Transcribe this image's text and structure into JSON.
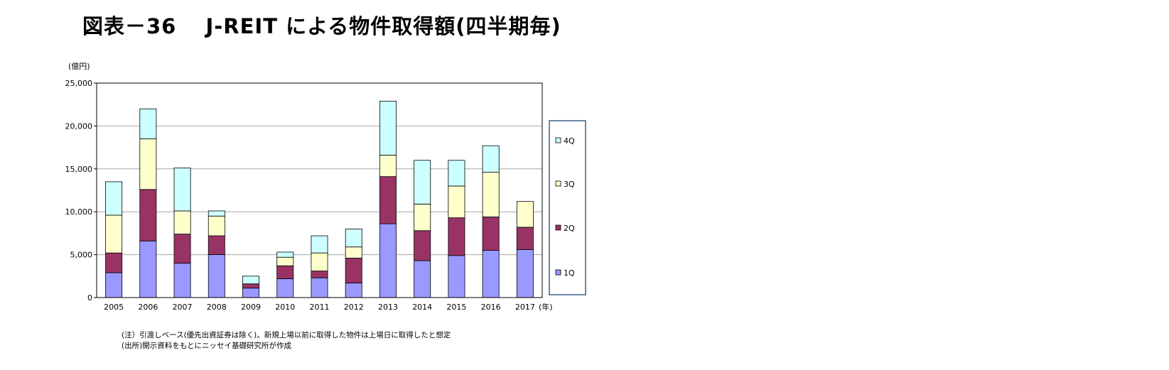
{
  "title": "図表－36　 J-REIT による物件取得額(四半期毎)",
  "chart_data": {
    "type": "bar",
    "stacked": true,
    "title": "",
    "ylabel": "(億円)",
    "xlabel": "(年)",
    "ylim": [
      0,
      25000
    ],
    "yticks": [
      0,
      5000,
      10000,
      15000,
      20000,
      25000
    ],
    "ytick_labels": [
      "0",
      "5,000",
      "10,000",
      "15,000",
      "20,000",
      "25,000"
    ],
    "grid": true,
    "legend_position": "right",
    "categories": [
      "2005",
      "2006",
      "2007",
      "2008",
      "2009",
      "2010",
      "2011",
      "2012",
      "2013",
      "2014",
      "2015",
      "2016",
      "2017"
    ],
    "series": [
      {
        "name": "1Q",
        "color": "#9999ff",
        "values": [
          2900,
          6600,
          4000,
          5000,
          1100,
          2200,
          2300,
          1700,
          8600,
          4300,
          4900,
          5500,
          5600
        ]
      },
      {
        "name": "2Q",
        "color": "#993366",
        "values": [
          2300,
          6000,
          3400,
          2200,
          500,
          1500,
          800,
          2900,
          5500,
          3500,
          4400,
          3900,
          2600
        ]
      },
      {
        "name": "3Q",
        "color": "#ffffcc",
        "values": [
          4400,
          5900,
          2700,
          2300,
          0,
          1000,
          2100,
          1300,
          2500,
          3100,
          3700,
          5200,
          3000
        ]
      },
      {
        "name": "4Q",
        "color": "#ccffff",
        "values": [
          3900,
          3500,
          5000,
          600,
          900,
          600,
          2000,
          2100,
          6300,
          5100,
          3000,
          3100,
          0
        ]
      }
    ]
  },
  "notes": [
    "(注）引渡しベース(優先出資証券は除く)。新規上場以前に取得した物件は上場日に取得したと想定",
    "(出所)開示資料をもとにニッセイ基礎研究所が作成"
  ]
}
